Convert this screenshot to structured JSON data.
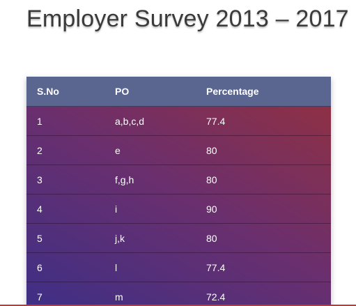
{
  "title": "Employer Survey 2013 – 2017",
  "table": {
    "headers": [
      "S.No",
      "PO",
      "Percentage"
    ],
    "rows": [
      [
        "1",
        "a,b,c,d",
        "77.4"
      ],
      [
        "2",
        "e",
        "80"
      ],
      [
        "3",
        "f,g,h",
        "80"
      ],
      [
        "4",
        "i",
        "90"
      ],
      [
        "5",
        "j,k",
        "80"
      ],
      [
        "6",
        "l",
        "77.4"
      ],
      [
        "7",
        "m",
        "72.4"
      ]
    ]
  },
  "colors": {
    "header_bg": "#5a6590",
    "gradient_start": "#3d2f86",
    "gradient_end": "#94303e",
    "accent_line": "#c0392b"
  }
}
